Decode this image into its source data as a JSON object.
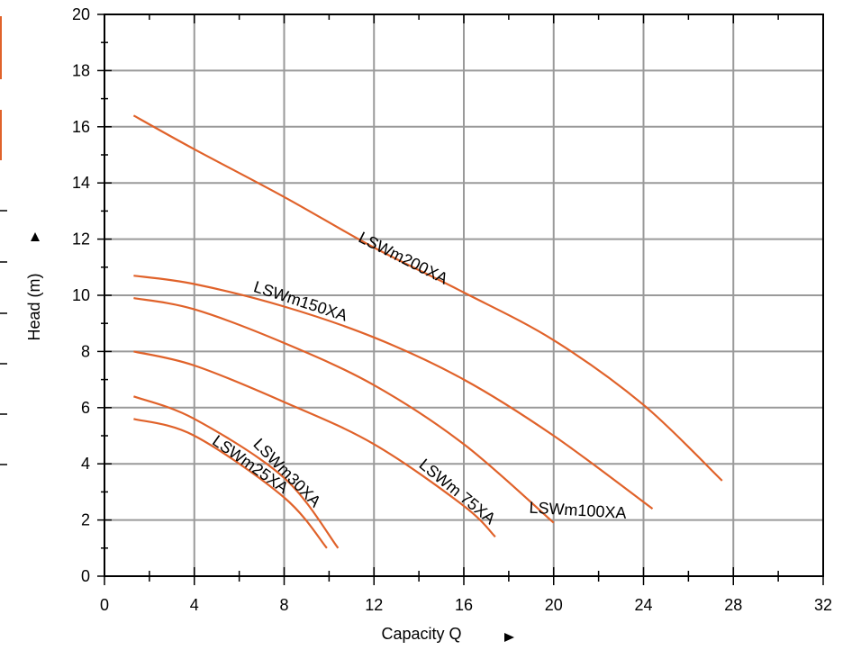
{
  "chart_data": {
    "type": "line",
    "xlabel": "Capacity Q",
    "ylabel": "Head (m)",
    "xlim": [
      0,
      32
    ],
    "ylim": [
      0,
      20
    ],
    "x_ticks": [
      "0",
      "4",
      "8",
      "12",
      "16",
      "20",
      "24",
      "28",
      "32"
    ],
    "y_ticks": [
      "0",
      "2",
      "4",
      "6",
      "8",
      "10",
      "12",
      "14",
      "16",
      "18",
      "20"
    ],
    "grid": true,
    "line_color": "#e0622a",
    "series": [
      {
        "name": "LSWm200XA",
        "x": [
          1.3,
          4,
          8,
          12,
          16,
          20,
          24,
          27.5
        ],
        "y": [
          16.4,
          15.2,
          13.5,
          11.7,
          10.1,
          8.4,
          6.1,
          3.4
        ]
      },
      {
        "name": "LSWm150XA",
        "x": [
          1.3,
          4,
          8,
          12,
          16,
          20,
          24.4
        ],
        "y": [
          10.7,
          10.4,
          9.6,
          8.5,
          7.0,
          5.0,
          2.4
        ]
      },
      {
        "name": "LSWm100XA",
        "x": [
          1.3,
          4,
          8,
          12,
          16,
          20
        ],
        "y": [
          9.9,
          9.5,
          8.3,
          6.8,
          4.7,
          1.9
        ]
      },
      {
        "name": "LSWm 75XA",
        "x": [
          1.3,
          4,
          8,
          12,
          16,
          17.4
        ],
        "y": [
          8.0,
          7.5,
          6.2,
          4.7,
          2.5,
          1.4
        ]
      },
      {
        "name": "LSWm30XA",
        "x": [
          1.3,
          4,
          8,
          10.4
        ],
        "y": [
          6.4,
          5.6,
          3.5,
          1.0
        ]
      },
      {
        "name": "LSWm25XA",
        "x": [
          1.3,
          4,
          8,
          9.9
        ],
        "y": [
          5.6,
          5.0,
          2.8,
          1.0
        ]
      }
    ]
  }
}
